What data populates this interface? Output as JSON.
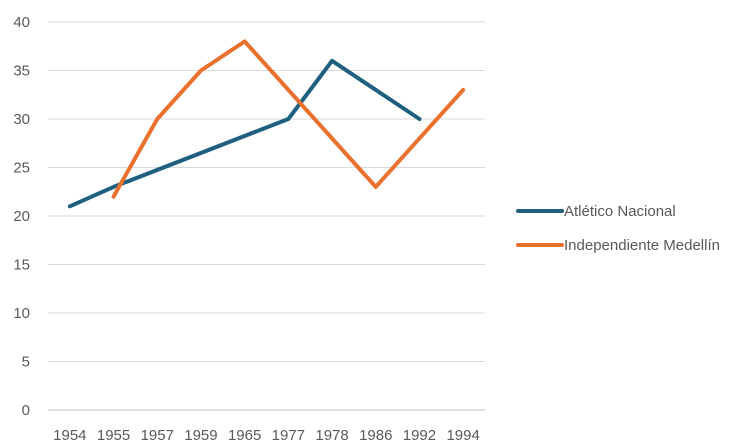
{
  "chart_data": {
    "type": "line",
    "categories": [
      "1954",
      "1955",
      "1957",
      "1959",
      "1965",
      "1977",
      "1978",
      "1986",
      "1992",
      "1994"
    ],
    "series": [
      {
        "name": "Atlético Nacional",
        "color": "#1f5f7f",
        "values": [
          21,
          23,
          null,
          null,
          null,
          30,
          36,
          null,
          30,
          null
        ]
      },
      {
        "name": "Independiente Medellín",
        "color": "#e8712e",
        "values": [
          null,
          22,
          30,
          35,
          38,
          null,
          null,
          23,
          null,
          33
        ]
      }
    ],
    "title": "",
    "xlabel": "",
    "ylabel": "",
    "ylim": [
      0,
      40
    ],
    "yticks": [
      0,
      5,
      10,
      15,
      20,
      25,
      30,
      35,
      40
    ],
    "grid": true,
    "legend_position": "right"
  }
}
